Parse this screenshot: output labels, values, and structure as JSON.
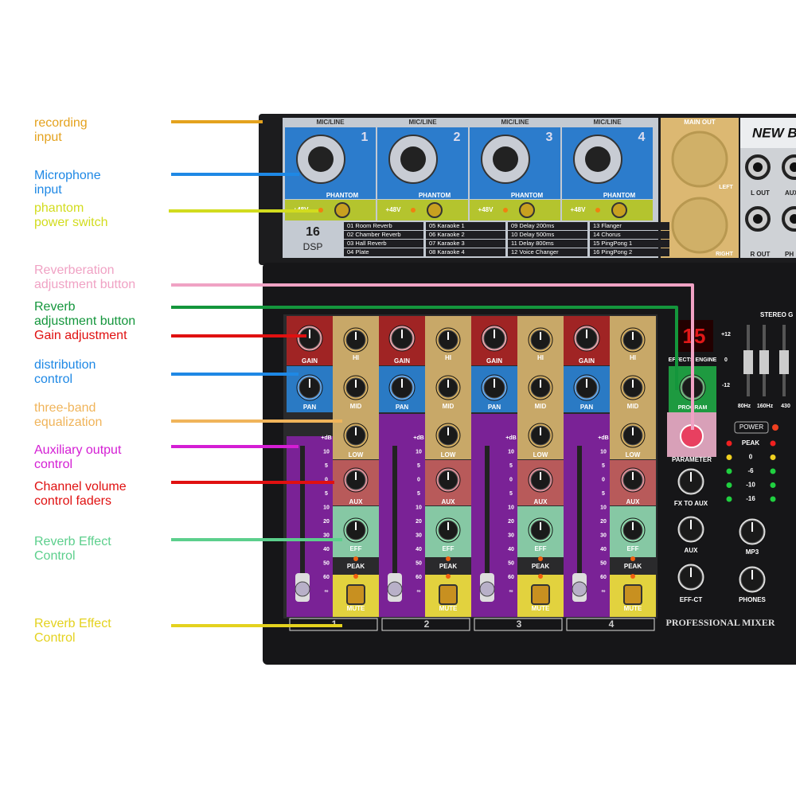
{
  "callouts": [
    {
      "lines": [
        "recording",
        "input"
      ],
      "color": "#e4a21e"
    },
    {
      "lines": [
        "Microphone",
        "input"
      ],
      "color": "#1e88e5"
    },
    {
      "lines": [
        "phantom",
        "power switch"
      ],
      "color": "#d2dc1e"
    },
    {
      "lines": [
        "Reverberation",
        "adjustment button"
      ],
      "color": "#f0a2c4"
    },
    {
      "lines": [
        "Reverb",
        "adjustment button"
      ],
      "color": "#14963c"
    },
    {
      "lines": [
        "Gain adjustment"
      ],
      "color": "#e01010"
    },
    {
      "lines": [
        "distribution",
        "control"
      ],
      "color": "#1e88e5"
    },
    {
      "lines": [
        "three-band",
        "equalization"
      ],
      "color": "#f0b45a"
    },
    {
      "lines": [
        "Auxiliary output",
        "control"
      ],
      "color": "#d41ed4"
    },
    {
      "lines": [
        "Channel volume",
        "control faders"
      ],
      "color": "#e01010"
    },
    {
      "lines": [
        "Reverb Effect",
        "Control"
      ],
      "color": "#5ccf8c"
    },
    {
      "lines": [
        "Reverb Effect",
        "Control"
      ],
      "color": "#e4d21e"
    }
  ],
  "inputs": {
    "header": "MIC/LINE",
    "channels": [
      "1",
      "2",
      "3",
      "4"
    ],
    "phantom": "PHANTOM",
    "phantom_switch": "+48V"
  },
  "main_out": {
    "title": "MAIN OUT",
    "left": "LEFT",
    "right": "RIGHT"
  },
  "brand": "NEW B",
  "outputs": [
    "L OUT",
    "R OUT",
    "AUX",
    "PH"
  ],
  "dsp": {
    "count": "16",
    "label": "DSP",
    "effects": [
      "01 Room Reverb",
      "02 Chamber Reverb",
      "03 Hall Reverb",
      "04 Plate",
      "05 Karaoke 1",
      "06 Karaoke 2",
      "07 Karaoke 3",
      "08 Karaoke 4",
      "09 Delay 200ms",
      "10 Delay 500ms",
      "11 Delay 800ms",
      "12 Voice Changer",
      "13 Flanger",
      "14 Chorus",
      "15 PingPong 1",
      "16 PingPong 2"
    ]
  },
  "strip": {
    "gain": "GAIN",
    "hi": "HI",
    "mid": "MID",
    "low": "LOW",
    "pan": "PAN",
    "aux": "AUX",
    "eff": "EFF",
    "peak": "PEAK",
    "mute": "MUTE"
  },
  "fader_scale": [
    "+dB",
    "10",
    "5",
    "0",
    "5",
    "10",
    "20",
    "30",
    "40",
    "50",
    "60",
    "∞"
  ],
  "master": {
    "display": "15",
    "engine": "EFFECTS ENGINE",
    "program": "PROGRAM",
    "parameter": "PARAMETER",
    "fx_to_aux": "FX TO AUX",
    "aux": "AUX",
    "eff_ct": "EFF-CT",
    "power": "POWER",
    "meter": [
      "PEAK",
      "0",
      "-6",
      "-10",
      "-16"
    ],
    "mp3": "MP3",
    "phones": "PHONES",
    "brand": "PROFESSIONAL MIXER",
    "stereo": "STEREO G",
    "eq_scale": [
      "+12",
      "0",
      "-12"
    ],
    "eq_freqs": [
      "80Hz",
      "160Hz",
      "430"
    ]
  }
}
